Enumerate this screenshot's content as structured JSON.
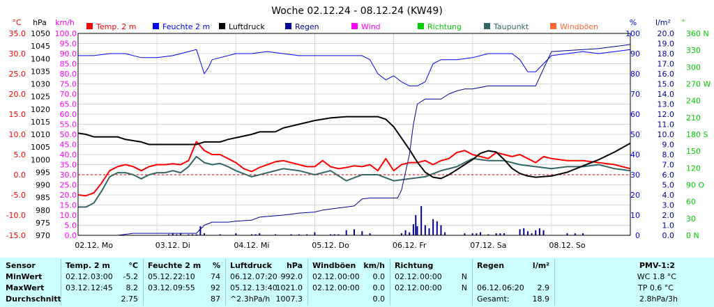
{
  "title": "Woche 02.12.24 - 08.12.24 (KW49)",
  "colors": {
    "temp": "#ff0000",
    "humidity": "#0000ff",
    "pressure": "#000000",
    "rain": "#000099",
    "wind": "#ff00ff",
    "direction": "#00cc00",
    "dewpoint": "#336666",
    "gust": "#ff6633",
    "stats_bg": "#ccffff"
  },
  "legend": [
    {
      "label": "Temp. 2 m",
      "color": "#ff0000"
    },
    {
      "label": "Feuchte  2 m",
      "color": "#0000ff"
    },
    {
      "label": "Luftdruck",
      "color": "#000000"
    },
    {
      "label": "Regen",
      "color": "#000099"
    },
    {
      "label": "Wind",
      "color": "#ff00ff"
    },
    {
      "label": "Richtung",
      "color": "#00cc00"
    },
    {
      "label": "Taupunkt",
      "color": "#336666"
    },
    {
      "label": "Windböen",
      "color": "#ff6633"
    }
  ],
  "chart_data": {
    "type": "line",
    "title": "Woche 02.12.24 - 08.12.24 (KW49)",
    "grid": true,
    "legend_position": "top",
    "x_domain": [
      0,
      7
    ],
    "x_ticks": [
      "02.12. Mo",
      "03.12. Di",
      "04.12. Mi",
      "05.12. Do",
      "06.12. Fr",
      "07.12. Sa",
      "08.12. So"
    ],
    "axes": {
      "temp": {
        "unit": "°C",
        "ylim": [
          -15,
          35
        ],
        "ticks": [
          "35.0",
          "30.0",
          "25.0",
          "20.0",
          "15.0",
          "10.0",
          "5.0",
          "0.0",
          "-5.0",
          "-10.0",
          "-15.0"
        ],
        "color": "#ff0000"
      },
      "pressure": {
        "unit": "hPa",
        "ylim": [
          970,
          1050
        ],
        "ticks": [
          "1050",
          "1045",
          "1040",
          "1035",
          "1030",
          "1025",
          "1020",
          "1015",
          "1010",
          "1005",
          "1000",
          "995",
          "990",
          "985",
          "980",
          "975",
          "970"
        ],
        "color": "#000000"
      },
      "wind": {
        "unit": "km/h",
        "ylim": [
          0,
          100
        ],
        "ticks": [
          "100.0",
          "95.0",
          "90.0",
          "85.0",
          "80.0",
          "75.0",
          "70.0",
          "65.0",
          "60.0",
          "55.0",
          "50.0",
          "45.0",
          "40.0",
          "35.0",
          "30.0",
          "25.0",
          "20.0",
          "15.0",
          "10.0",
          "5.0",
          "0.0"
        ],
        "color": "#ff00ff"
      },
      "humidity": {
        "unit": "%",
        "ylim": [
          0,
          100
        ],
        "ticks": [
          "100",
          "90",
          "80",
          "70",
          "60",
          "50",
          "40",
          "30",
          "20",
          "10",
          "0"
        ],
        "color": "#0000ff"
      },
      "rain": {
        "unit": "l/m²",
        "ylim": [
          0,
          20
        ],
        "ticks": [
          "20.0",
          "19.0",
          "18.0",
          "17.0",
          "16.0",
          "15.0",
          "14.0",
          "13.0",
          "12.0",
          "11.0",
          "10.0",
          "9.0",
          "8.0",
          "7.0",
          "6.0",
          "5.0",
          "4.0",
          "3.0",
          "2.0",
          "1.0",
          "0.0"
        ],
        "color": "#000099"
      },
      "direction": {
        "unit": "°",
        "ylim": [
          0,
          360
        ],
        "ticks": [
          "360 N",
          "330",
          "300",
          "270 W",
          "240",
          "210",
          "180 S",
          "150",
          "120",
          "90 O",
          "60",
          "30",
          "0 N"
        ],
        "color": "#00cc00"
      }
    },
    "series": [
      {
        "name": "Temp. 2 m",
        "axis": "temp",
        "color": "#ff0000",
        "x": [
          0,
          0.1,
          0.2,
          0.3,
          0.4,
          0.5,
          0.6,
          0.7,
          0.8,
          0.9,
          1.0,
          1.1,
          1.2,
          1.3,
          1.4,
          1.5,
          1.6,
          1.7,
          1.75,
          1.8,
          1.9,
          2.0,
          2.1,
          2.2,
          2.3,
          2.4,
          2.5,
          2.6,
          2.7,
          2.8,
          2.9,
          3.0,
          3.1,
          3.2,
          3.3,
          3.4,
          3.5,
          3.6,
          3.7,
          3.8,
          3.9,
          4.0,
          4.1,
          4.2,
          4.3,
          4.4,
          4.5,
          4.6,
          4.7,
          4.8,
          4.9,
          5.0,
          5.1,
          5.2,
          5.3,
          5.4,
          5.5,
          5.6,
          5.7,
          5.8,
          5.9,
          6.0,
          6.2,
          6.4,
          6.6,
          6.8,
          7.0
        ],
        "y": [
          -5.0,
          -5.2,
          -4.5,
          -2.0,
          1.0,
          2.0,
          2.5,
          2.0,
          1.0,
          2.0,
          2.5,
          2.5,
          2.7,
          2.5,
          3.5,
          8.2,
          6.0,
          5.0,
          5.0,
          5.0,
          4.0,
          3.0,
          1.5,
          0.8,
          1.8,
          2.5,
          3.2,
          3.5,
          3.0,
          2.5,
          2.0,
          2.0,
          3.5,
          2.0,
          1.5,
          1.8,
          2.2,
          2.0,
          2.5,
          1.0,
          4.0,
          1.0,
          2.5,
          3.0,
          3.0,
          3.5,
          2.5,
          3.5,
          4.0,
          5.5,
          6.0,
          5.0,
          4.5,
          4.0,
          5.5,
          5.0,
          4.5,
          5.0,
          4.0,
          3.0,
          4.5,
          4.0,
          3.5,
          3.5,
          3.0,
          2.5,
          1.5
        ]
      },
      {
        "name": "Taupunkt",
        "axis": "temp",
        "color": "#336666",
        "x": [
          0,
          0.1,
          0.2,
          0.3,
          0.4,
          0.5,
          0.6,
          0.7,
          0.8,
          0.9,
          1.0,
          1.1,
          1.2,
          1.3,
          1.4,
          1.5,
          1.6,
          1.7,
          1.8,
          1.9,
          2.0,
          2.2,
          2.4,
          2.6,
          2.8,
          3.0,
          3.2,
          3.4,
          3.6,
          3.8,
          4.0,
          4.2,
          4.4,
          4.6,
          4.8,
          5.0,
          5.2,
          5.4,
          5.6,
          5.8,
          6.0,
          6.2,
          6.4,
          6.6,
          6.8,
          7.0
        ],
        "y": [
          -8.0,
          -8.0,
          -7.0,
          -4.0,
          -0.5,
          0.5,
          0.5,
          0.0,
          -1.0,
          0.0,
          0.5,
          0.5,
          1.0,
          0.5,
          2.0,
          4.5,
          3.0,
          2.5,
          2.8,
          2.0,
          1.0,
          -0.5,
          0.5,
          1.5,
          1.0,
          0.0,
          1.0,
          -1.5,
          0.0,
          0.0,
          -1.5,
          -1.0,
          -0.5,
          1.0,
          2.0,
          4.0,
          3.5,
          3.5,
          2.5,
          2.0,
          1.5,
          2.0,
          2.0,
          2.5,
          1.5,
          1.0
        ]
      },
      {
        "name": "Luftdruck",
        "axis": "pressure",
        "color": "#000000",
        "x": [
          0,
          0.1,
          0.2,
          0.5,
          0.6,
          0.8,
          0.9,
          1.5,
          1.6,
          1.8,
          1.9,
          2.2,
          2.3,
          2.5,
          2.6,
          2.8,
          3.0,
          3.2,
          3.4,
          3.6,
          3.8,
          3.9,
          4.0,
          4.1,
          4.2,
          4.3,
          4.4,
          4.5,
          4.6,
          4.7,
          4.8,
          4.9,
          5.0,
          5.1,
          5.2,
          5.3,
          5.4,
          5.5,
          5.6,
          5.7,
          5.8,
          6.0,
          6.2,
          6.4,
          6.6,
          6.8,
          7.0
        ],
        "y": [
          1010.5,
          1010,
          1009,
          1009,
          1008,
          1007,
          1006,
          1006,
          1007,
          1007,
          1008,
          1010,
          1011,
          1011,
          1012.5,
          1014,
          1015.5,
          1016.5,
          1017,
          1017,
          1017,
          1016,
          1013,
          1008.5,
          1004,
          999,
          995,
          993,
          992.5,
          994,
          996,
          998,
          1000,
          1002.5,
          1003.5,
          1003,
          1000,
          996.5,
          994.5,
          993.5,
          993,
          993.5,
          995,
          997.5,
          1000,
          1003,
          1006.5
        ]
      },
      {
        "name": "Feuchte  2 m",
        "axis": "humidity",
        "color": "#0000ff",
        "x": [
          0,
          0.2,
          0.4,
          0.6,
          0.8,
          1.0,
          1.2,
          1.4,
          1.5,
          1.55,
          1.6,
          1.65,
          1.7,
          1.8,
          2.0,
          2.2,
          2.4,
          2.6,
          2.8,
          3.0,
          3.2,
          3.4,
          3.6,
          3.7,
          3.8,
          3.9,
          4.0,
          4.1,
          4.2,
          4.3,
          4.4,
          4.5,
          4.6,
          4.8,
          5.0,
          5.2,
          5.4,
          5.5,
          5.6,
          5.7,
          5.8,
          6.0,
          6.2,
          6.4,
          6.6,
          6.8,
          7.0
        ],
        "y": [
          89,
          89,
          90,
          90,
          88,
          88,
          89,
          91,
          92,
          86,
          80,
          83,
          87,
          88,
          90,
          90,
          91,
          90,
          89,
          89,
          89,
          89,
          89,
          87,
          80,
          77,
          79,
          76,
          74,
          74,
          76,
          85,
          87,
          87,
          88,
          90,
          90,
          90,
          87,
          81,
          81,
          89,
          90,
          91,
          90,
          91,
          92
        ]
      },
      {
        "name": "Regen",
        "axis": "rain",
        "color": "#000099",
        "x": [
          0,
          0.5,
          0.6,
          0.7,
          1.0,
          1.1,
          1.2,
          1.4,
          1.5,
          1.6,
          1.7,
          1.9,
          2.0,
          2.2,
          2.3,
          2.6,
          2.7,
          2.8,
          3.0,
          3.1,
          3.2,
          3.4,
          3.5,
          3.6,
          3.7,
          3.8,
          3.9,
          4.0,
          4.05,
          4.1,
          4.2,
          4.25,
          4.3,
          4.4,
          4.5,
          4.6,
          4.7,
          4.8,
          4.9,
          5.0,
          5.2,
          5.4,
          5.6,
          5.8,
          5.9,
          6.0,
          6.2,
          6.4,
          6.6,
          6.8,
          7.0
        ],
        "y": [
          0,
          0,
          0.1,
          0.2,
          0.2,
          0.2,
          0.2,
          0.2,
          0.2,
          1.0,
          1.3,
          1.3,
          1.4,
          1.5,
          1.8,
          2.0,
          2.1,
          2.2,
          2.3,
          2.5,
          2.6,
          2.8,
          2.9,
          3.6,
          3.7,
          3.7,
          3.7,
          3.7,
          3.7,
          4.5,
          8.0,
          11.0,
          13.0,
          13.5,
          13.5,
          13.5,
          14.0,
          14.3,
          14.5,
          14.5,
          14.8,
          14.8,
          14.8,
          14.8,
          16.5,
          18.2,
          18.3,
          18.4,
          18.5,
          18.7,
          18.9
        ]
      },
      {
        "name": "Regen (Stunde)",
        "axis": "rain",
        "color": "#000099",
        "kind": "bars",
        "x": [
          1.15,
          1.2,
          1.25,
          1.3,
          1.4,
          1.45,
          1.5,
          1.55,
          1.6,
          1.8,
          2.0,
          2.2,
          2.25,
          2.3,
          2.5,
          2.7,
          2.8,
          2.9,
          3.0,
          3.2,
          3.25,
          3.3,
          3.4,
          3.5,
          3.6,
          3.7,
          4.1,
          4.15,
          4.2,
          4.25,
          4.28,
          4.3,
          4.35,
          4.4,
          4.45,
          4.5,
          4.55,
          4.6,
          4.65,
          4.9,
          5.0,
          5.05,
          5.1,
          5.2,
          5.3,
          5.35,
          5.4,
          5.6,
          5.65,
          5.7,
          5.75,
          5.8,
          5.85,
          5.9,
          6.2,
          6.3,
          6.4
        ],
        "y": [
          0.1,
          0.2,
          0.1,
          0.2,
          0.1,
          0.1,
          0.1,
          0.9,
          0.2,
          0.1,
          0.2,
          0.1,
          0.1,
          0.2,
          0.1,
          0.1,
          0.1,
          0.1,
          0.3,
          0.1,
          0.1,
          0.1,
          0.5,
          0.6,
          0.4,
          0.2,
          0.2,
          0.5,
          0.3,
          1.1,
          2.0,
          0.9,
          2.9,
          1.0,
          0.7,
          1.6,
          1.4,
          1.0,
          0.3,
          0.2,
          0.2,
          0.2,
          0.3,
          0.1,
          0.2,
          0.2,
          0.2,
          0.6,
          0.7,
          0.4,
          0.2,
          0.5,
          0.7,
          0.5,
          0.2,
          0.2,
          0.2
        ]
      }
    ]
  },
  "stats": {
    "sensor": {
      "header": "Sensor",
      "rows": [
        "MinWert",
        "MaxWert",
        "Durchschnitt"
      ]
    },
    "temp": {
      "header": "Temp. 2 m",
      "unit": "°C",
      "rows": [
        {
          "date": "02.12.",
          "time": "03:00",
          "value": "-5.2"
        },
        {
          "date": "03.12.",
          "time": "12:45",
          "value": "8.2"
        },
        {
          "date": "",
          "time": "",
          "value": "2.75"
        }
      ]
    },
    "humidity": {
      "header": "Feuchte  2 m",
      "unit": "%",
      "rows": [
        {
          "date": "05.12.",
          "time": "22:10",
          "value": "74"
        },
        {
          "date": "03.12.",
          "time": "09:55",
          "value": "92"
        },
        {
          "date": "",
          "time": "",
          "value": "87"
        }
      ]
    },
    "pressure": {
      "header": "Luftdruck",
      "unit": "hPa",
      "rows": [
        {
          "date": "06.12.",
          "time": "07:20",
          "value": "992.0"
        },
        {
          "date": "05.12.",
          "time": "13:40",
          "value": "1021.0"
        },
        {
          "date": "^2.3hPa/h",
          "time": "",
          "value": "1007.3"
        }
      ]
    },
    "gusts": {
      "header": "Windböen",
      "unit": "km/h",
      "rows": [
        {
          "date": "02.12.",
          "time": "00:00",
          "value": "0.0"
        },
        {
          "date": "02.12.",
          "time": "00:00",
          "value": "0.0"
        },
        {
          "date": "",
          "time": "",
          "value": "0.0"
        }
      ]
    },
    "direction": {
      "header": "Richtung",
      "rows": [
        {
          "date": "02.12.",
          "time": "00:00",
          "value": "N"
        },
        {
          "date": "02.12.",
          "time": "00:00",
          "value": "N"
        }
      ]
    },
    "rain": {
      "header": "Regen",
      "unit": "l/m²",
      "rows": [
        {
          "date": "",
          "time": "",
          "value": ""
        },
        {
          "date": "06.12.",
          "time": "06:20",
          "value": "2.9"
        },
        {
          "date": "Gesamt:",
          "time": "",
          "value": "18.9"
        }
      ]
    },
    "pmv": {
      "header": "PMV-1:2",
      "rows": [
        "WC 1.8 °C",
        "TP 0.6 °C",
        "2.8hPa/3h"
      ]
    }
  }
}
